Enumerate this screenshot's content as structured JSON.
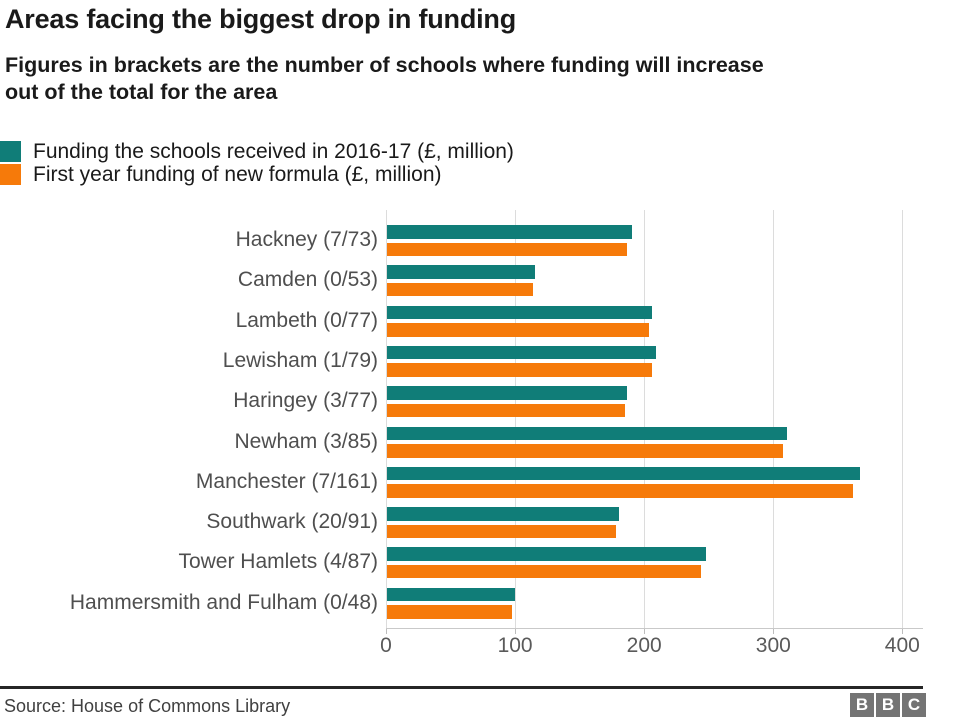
{
  "header": {
    "title": "Areas facing the biggest drop in funding",
    "subtitle_line1": "Figures in brackets are the number of schools where funding will increase",
    "subtitle_line2": "out of the total for the area"
  },
  "legend": {
    "items": [
      {
        "label": "Funding the schools received in 2016-17 (£, million)",
        "color": "#107d78"
      },
      {
        "label": "First year funding of new formula (£, million)",
        "color": "#f67a0a"
      }
    ]
  },
  "chart_data": {
    "type": "bar",
    "orientation": "horizontal",
    "title": "Areas facing the biggest drop in funding",
    "xlabel": "",
    "ylabel": "",
    "grid": true,
    "legend_position": "top-left",
    "categories": [
      "Hackney (7/73)",
      "Camden (0/53)",
      "Lambeth (0/77)",
      "Lewisham (1/79)",
      "Haringey (3/77)",
      "Newham (3/85)",
      "Manchester (7/161)",
      "Southwark (20/91)",
      "Tower Hamlets (4/87)",
      "Hammersmith and Fulham (0/48)"
    ],
    "series": [
      {
        "name": "Funding the schools received in 2016-17 (£, million)",
        "color": "#107d78",
        "values": [
          190,
          115,
          205,
          208,
          186,
          310,
          366,
          180,
          247,
          99
        ]
      },
      {
        "name": "First year funding of new formula (£, million)",
        "color": "#f67a0a",
        "values": [
          186,
          113,
          203,
          205,
          184,
          307,
          361,
          177,
          243,
          97
        ]
      }
    ],
    "xlim": [
      0,
      416
    ],
    "xticks": [
      0,
      100,
      200,
      300,
      400
    ]
  },
  "footer": {
    "source": "Source: House of Commons Library",
    "logo_letters": [
      "B",
      "B",
      "C"
    ]
  }
}
